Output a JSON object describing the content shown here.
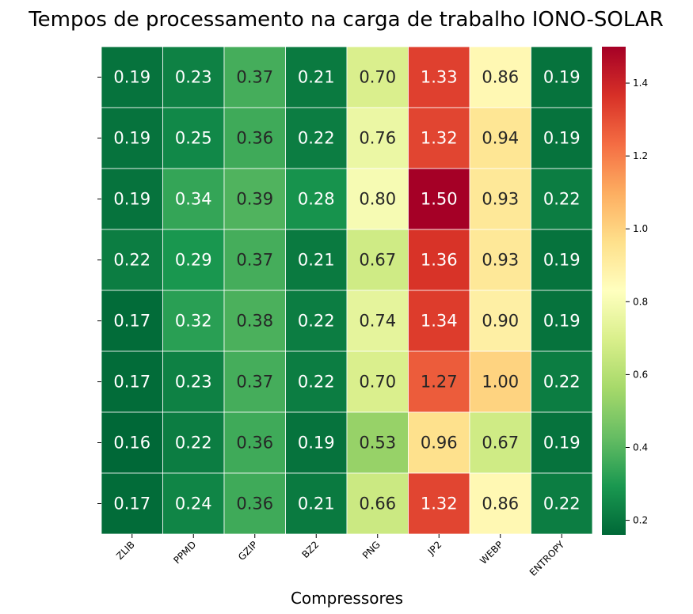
{
  "chart_data": {
    "type": "heatmap",
    "title": "Tempos de processamento na carga de trabalho IONO-SOLAR",
    "xlabel": "Compressores",
    "ylabel": "",
    "columns": [
      "ZLIB",
      "PPMD",
      "GZIP",
      "BZ2",
      "PNG",
      "JP2",
      "WEBP",
      "ENTROPY"
    ],
    "rows": [
      "",
      "",
      "",
      "",
      "",
      "",
      "",
      ""
    ],
    "values": [
      [
        0.19,
        0.23,
        0.37,
        0.21,
        0.7,
        1.33,
        0.86,
        0.19
      ],
      [
        0.19,
        0.25,
        0.36,
        0.22,
        0.76,
        1.32,
        0.94,
        0.19
      ],
      [
        0.19,
        0.34,
        0.39,
        0.28,
        0.8,
        1.5,
        0.93,
        0.22
      ],
      [
        0.22,
        0.29,
        0.37,
        0.21,
        0.67,
        1.36,
        0.93,
        0.19
      ],
      [
        0.17,
        0.32,
        0.38,
        0.22,
        0.74,
        1.34,
        0.9,
        0.19
      ],
      [
        0.17,
        0.23,
        0.37,
        0.22,
        0.7,
        1.27,
        1.0,
        0.22
      ],
      [
        0.16,
        0.22,
        0.36,
        0.19,
        0.53,
        0.96,
        0.67,
        0.19
      ],
      [
        0.17,
        0.24,
        0.36,
        0.21,
        0.66,
        1.32,
        0.86,
        0.22
      ]
    ],
    "value_labels": [
      [
        "0.19",
        "0.23",
        "0.37",
        "0.21",
        "0.70",
        "1.33",
        "0.86",
        "0.19"
      ],
      [
        "0.19",
        "0.25",
        "0.36",
        "0.22",
        "0.76",
        "1.32",
        "0.94",
        "0.19"
      ],
      [
        "0.19",
        "0.34",
        "0.39",
        "0.28",
        "0.80",
        "1.50",
        "0.93",
        "0.22"
      ],
      [
        "0.22",
        "0.29",
        "0.37",
        "0.21",
        "0.67",
        "1.36",
        "0.93",
        "0.19"
      ],
      [
        "0.17",
        "0.32",
        "0.38",
        "0.22",
        "0.74",
        "1.34",
        "0.90",
        "0.19"
      ],
      [
        "0.17",
        "0.23",
        "0.37",
        "0.22",
        "0.70",
        "1.27",
        "1.00",
        "0.22"
      ],
      [
        "0.16",
        "0.22",
        "0.36",
        "0.19",
        "0.53",
        "0.96",
        "0.67",
        "0.19"
      ],
      [
        "0.17",
        "0.24",
        "0.36",
        "0.21",
        "0.66",
        "1.32",
        "0.86",
        "0.22"
      ]
    ],
    "colormap": "RdYlGn_r",
    "color_range": [
      0.16,
      1.5
    ],
    "colorbar_ticks": [
      0.2,
      0.4,
      0.6,
      0.8,
      1.0,
      1.2,
      1.4
    ],
    "colorbar_tick_labels": [
      "0.2",
      "0.4",
      "0.6",
      "0.8",
      "1.0",
      "1.2",
      "1.4"
    ],
    "legend_placement": "colorbar-right",
    "grid": false
  }
}
